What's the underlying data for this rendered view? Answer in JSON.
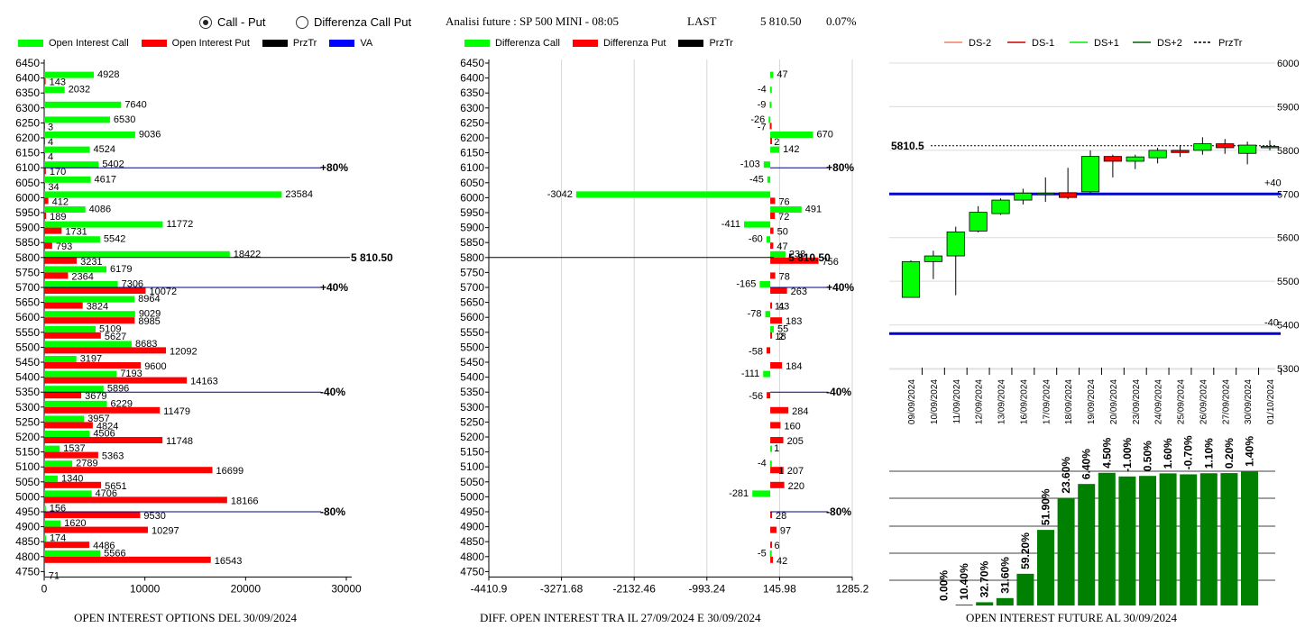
{
  "controls": {
    "radio_call_put": "Call - Put",
    "radio_diff": "Differenza Call Put",
    "analysis": "Analisi future : SP 500 MINI - 08:05",
    "last_label": "LAST",
    "last_value": "5 810.50",
    "last_change": "0.07%"
  },
  "legends": {
    "oi": [
      "Open Interest Call",
      "Open Interest Put",
      "PrzTr",
      "VA"
    ],
    "diff": [
      "Differenza Call",
      "Differenza Put",
      "PrzTr"
    ],
    "future": [
      "DS-2",
      "DS-1",
      "DS+1",
      "DS+2",
      "PrzTr"
    ]
  },
  "colors": {
    "call": "#00ff00",
    "put": "#ff0000",
    "line": "#000080",
    "ds_blue": "#0000cc",
    "bar_green": "#008000",
    "ds_minus2": "#f08060",
    "ds_minus1": "#cc0000",
    "ds_plus1": "#00ee00",
    "ds_plus2": "#006400"
  },
  "captions": {
    "oi": "OPEN INTEREST OPTIONS DEL 30/09/2024",
    "diff": "DIFF. OPEN INTEREST TRA IL 27/09/2024 E 30/09/2024",
    "future": "OPEN INTEREST FUTURE AL 30/09/2024"
  },
  "chart_data": [
    {
      "type": "bar",
      "orientation": "horizontal",
      "strikes": [
        "6450",
        "6400",
        "6350",
        "6300",
        "6250",
        "6200",
        "6150",
        "6100",
        "6050",
        "6000",
        "5950",
        "5900",
        "5850",
        "5800",
        "5750",
        "5700",
        "5650",
        "5600",
        "5550",
        "5500",
        "5450",
        "5400",
        "5350",
        "5300",
        "5250",
        "5200",
        "5150",
        "5100",
        "5050",
        "5000",
        "4950",
        "4900",
        "4850",
        "4800",
        "4750"
      ],
      "series": [
        {
          "name": "Open Interest Call",
          "values": [
            null,
            4928,
            2032,
            7640,
            6530,
            9036,
            4524,
            5402,
            4617,
            23584,
            4086,
            11772,
            5542,
            18422,
            6179,
            7306,
            8964,
            9029,
            5109,
            8683,
            3197,
            7193,
            5896,
            6229,
            3957,
            4506,
            1537,
            2789,
            1340,
            4706,
            156,
            1620,
            174,
            5566,
            null
          ]
        },
        {
          "name": "Open Interest Put",
          "values": [
            null,
            143,
            null,
            null,
            3,
            4,
            4,
            170,
            34,
            412,
            189,
            1731,
            793,
            3231,
            2364,
            10072,
            3824,
            8985,
            5627,
            12092,
            9600,
            14163,
            3679,
            11479,
            4824,
            11748,
            5363,
            16699,
            5651,
            18166,
            9530,
            10297,
            4486,
            16543,
            71
          ]
        }
      ],
      "xticks": [
        "0",
        "10000",
        "20000",
        "30000"
      ],
      "xlim": [
        0,
        30000
      ],
      "ref_lines": [
        {
          "strike": "6100",
          "label": "+80%"
        },
        {
          "strike": "5800",
          "label": "5 810.50"
        },
        {
          "strike": "5700",
          "label": "+40%"
        },
        {
          "strike": "5350",
          "label": "-40%"
        },
        {
          "strike": "4950",
          "label": "-80%"
        }
      ]
    },
    {
      "type": "bar",
      "orientation": "horizontal",
      "strikes": [
        "6450",
        "6400",
        "6350",
        "6300",
        "6250",
        "6200",
        "6150",
        "6100",
        "6050",
        "6000",
        "5950",
        "5900",
        "5850",
        "5800",
        "5750",
        "5700",
        "5650",
        "5600",
        "5550",
        "5500",
        "5450",
        "5400",
        "5350",
        "5300",
        "5250",
        "5200",
        "5150",
        "5100",
        "5050",
        "5000",
        "4950",
        "4900",
        "4850",
        "4800",
        "4750"
      ],
      "series": [
        {
          "name": "Differenza Call",
          "values": [
            null,
            47,
            -4,
            -9,
            -26,
            670,
            142,
            -103,
            -45,
            -3042,
            491,
            -411,
            -60,
            238,
            null,
            -165,
            null,
            -78,
            55,
            null,
            null,
            -111,
            null,
            null,
            null,
            null,
            1,
            -4,
            null,
            -281,
            null,
            null,
            null,
            -5,
            null
          ]
        },
        {
          "name": "Differenza Put",
          "values": [
            null,
            null,
            null,
            null,
            -7,
            2,
            null,
            null,
            null,
            76,
            72,
            50,
            47,
            756,
            78,
            263,
            11,
            183,
            18,
            -58,
            184,
            null,
            -56,
            284,
            160,
            205,
            null,
            207,
            220,
            null,
            28,
            97,
            6,
            42,
            null
          ]
        }
      ],
      "extra_labels": [
        {
          "strike": "5650",
          "text": "43"
        },
        {
          "strike": "5550",
          "text": "2"
        },
        {
          "strike": "5100",
          "text": "1"
        }
      ],
      "xticks": [
        "-4410.9",
        "-3271.68",
        "-2132.46",
        "-993.24",
        "145.98",
        "1285.2"
      ],
      "xlim": [
        -4410.9,
        1285.2
      ],
      "ref_lines": [
        {
          "strike": "6100",
          "label": "+80%"
        },
        {
          "strike": "5800",
          "label": "5 810.50"
        },
        {
          "strike": "5700",
          "label": "+40%"
        },
        {
          "strike": "5350",
          "label": "-40%"
        },
        {
          "strike": "4950",
          "label": "-80%"
        }
      ]
    },
    {
      "type": "candlestick",
      "dates": [
        "09/09/2024",
        "10/09/2024",
        "11/09/2024",
        "12/09/2024",
        "13/09/2024",
        "16/09/2024",
        "17/09/2024",
        "18/09/2024",
        "19/09/2024",
        "20/09/2024",
        "23/09/2024",
        "24/09/2024",
        "25/09/2024",
        "26/09/2024",
        "27/09/2024",
        "30/09/2024",
        "01/10/2024"
      ],
      "ohlc": [
        [
          5463,
          5548,
          5462,
          5545
        ],
        [
          5545,
          5570,
          5505,
          5558
        ],
        [
          5558,
          5625,
          5468,
          5613
        ],
        [
          5615,
          5672,
          5612,
          5658
        ],
        [
          5655,
          5690,
          5652,
          5686
        ],
        [
          5686,
          5712,
          5676,
          5702
        ],
        [
          5702,
          5738,
          5682,
          5702
        ],
        [
          5703,
          5760,
          5688,
          5692
        ],
        [
          5705,
          5800,
          5702,
          5786
        ],
        [
          5786,
          5790,
          5738,
          5775
        ],
        [
          5775,
          5790,
          5757,
          5785
        ],
        [
          5783,
          5806,
          5770,
          5800
        ],
        [
          5800,
          5812,
          5785,
          5795
        ],
        [
          5800,
          5830,
          5790,
          5815
        ],
        [
          5815,
          5826,
          5792,
          5806
        ],
        [
          5793,
          5820,
          5768,
          5812
        ],
        [
          5806,
          5823,
          5800,
          5809
        ]
      ],
      "ylim": [
        5300,
        6000
      ],
      "yticks": [
        "6000",
        "5900",
        "5800",
        "5700",
        "5600",
        "5500",
        "5400",
        "5300"
      ],
      "last_label": "5810.5",
      "last_value": 5810.5,
      "ds_lines": [
        {
          "value": 5700,
          "label": "+40"
        },
        {
          "value": 5380,
          "label": "-40"
        }
      ],
      "oi_bars": {
        "values": [
          0,
          10.4,
          32.7,
          31.6,
          59.2,
          51.9,
          23.6,
          6.4,
          4.5,
          -1.0,
          0.5,
          1.6,
          -0.7,
          1.1,
          0.2,
          1.4
        ],
        "labels": [
          "0.00%",
          "10.40%",
          "32.70%",
          "31.60%",
          "59.20%",
          "51.90%",
          "23.60%",
          "6.40%",
          "4.50%",
          "-1.00%",
          "0.50%",
          "1.60%",
          "-0.70%",
          "1.10%",
          "0.20%",
          "1.40%"
        ],
        "heights": [
          0.0,
          0.7,
          2.4,
          5.5,
          23.6,
          56.3,
          80.1,
          90.5,
          98.8,
          96.1,
          96.5,
          98.4,
          97.7,
          98.5,
          98.6,
          100.0
        ]
      }
    }
  ]
}
